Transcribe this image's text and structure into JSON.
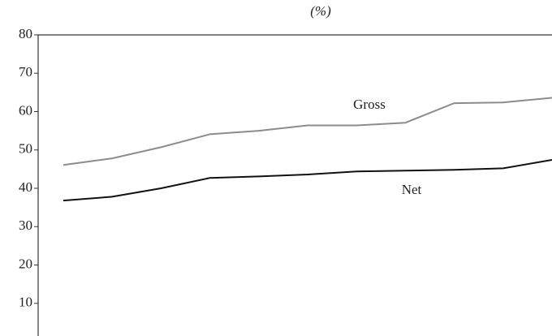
{
  "chart_data": {
    "type": "line",
    "title": "(%)",
    "categories": [
      null,
      null,
      null,
      null,
      null,
      null,
      null,
      null,
      null,
      null,
      null
    ],
    "series": [
      {
        "name": "Gross",
        "color": "#8c8c8c",
        "values": [
          46.1,
          47.8,
          50.7,
          54.1,
          55.0,
          56.4,
          56.4,
          57.1,
          62.2,
          62.4,
          63.6
        ]
      },
      {
        "name": "Net",
        "color": "#111111",
        "values": [
          36.8,
          37.8,
          40.0,
          42.7,
          43.1,
          43.6,
          44.4,
          44.6,
          44.8,
          45.2,
          47.4
        ]
      }
    ],
    "ylim": [
      0,
      80
    ],
    "yticks": [
      10,
      20,
      30,
      40,
      50,
      60,
      70,
      80
    ]
  }
}
